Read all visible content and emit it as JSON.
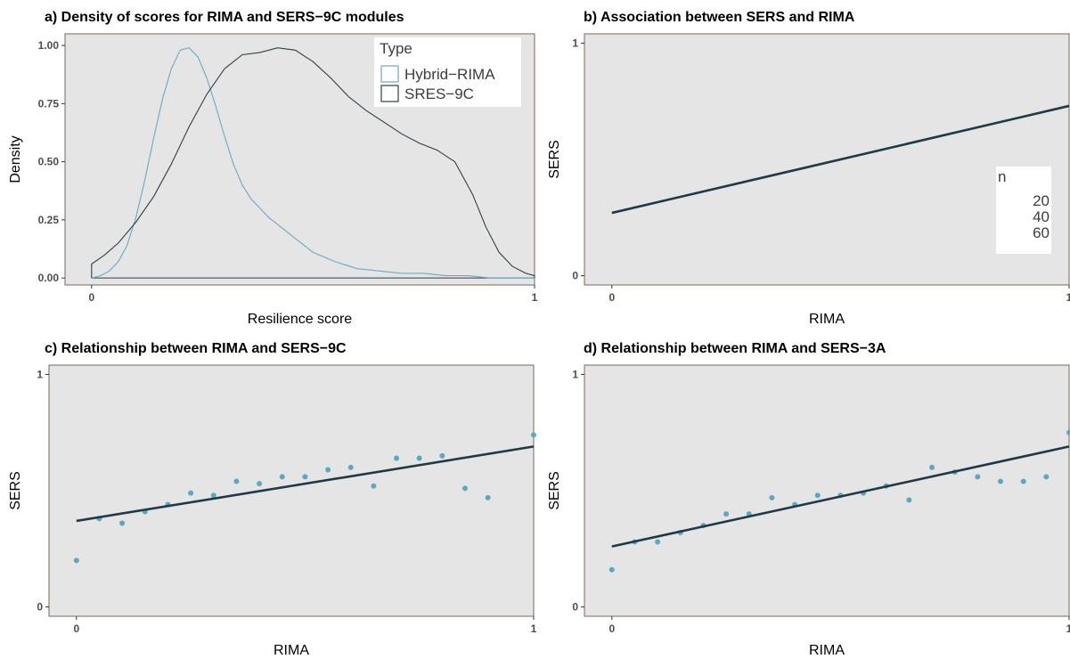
{
  "colors": {
    "panel_background": "#e5e5e5",
    "panel_border": "#7a6a5a",
    "hybrid_rima": "#6aaac2",
    "sres_9c": "#2f3f47",
    "fit_line": "#1f3a46",
    "points": "#5ea7c2"
  },
  "chart_data": [
    {
      "id": "a",
      "type": "line",
      "title": "a) Density of scores for RIMA and SERS−9C modules",
      "xlabel": "Resilience score",
      "ylabel": "Density",
      "xlim": [
        -0.06,
        1.0
      ],
      "ylim": [
        -0.03,
        1.05
      ],
      "xticks": [
        0,
        1
      ],
      "xtick_labels": [
        "0",
        "1"
      ],
      "yticks": [
        0,
        0.25,
        0.5,
        0.75,
        1.0
      ],
      "ytick_labels": [
        "0.00",
        "0.25",
        "0.50",
        "0.75",
        "1.00"
      ],
      "legend": {
        "title": "Type",
        "entries": [
          "Hybrid−RIMA",
          "SRES−9C"
        ],
        "position": "top-right"
      },
      "series": [
        {
          "name": "Hybrid−RIMA",
          "color_key": "hybrid_rima",
          "x": [
            0,
            0.02,
            0.04,
            0.06,
            0.08,
            0.1,
            0.12,
            0.14,
            0.16,
            0.18,
            0.2,
            0.22,
            0.24,
            0.26,
            0.28,
            0.3,
            0.32,
            0.34,
            0.36,
            0.38,
            0.4,
            0.42,
            0.44,
            0.46,
            0.48,
            0.5,
            0.55,
            0.6,
            0.65,
            0.7,
            0.75,
            0.8,
            0.85,
            0.9,
            0.95,
            1.0
          ],
          "y": [
            0.0,
            0.01,
            0.03,
            0.07,
            0.14,
            0.26,
            0.42,
            0.6,
            0.77,
            0.9,
            0.98,
            0.99,
            0.95,
            0.86,
            0.74,
            0.61,
            0.49,
            0.4,
            0.34,
            0.3,
            0.26,
            0.23,
            0.2,
            0.17,
            0.14,
            0.11,
            0.07,
            0.04,
            0.03,
            0.02,
            0.02,
            0.01,
            0.01,
            0.0,
            0.0,
            0.0
          ]
        },
        {
          "name": "SRES−9C",
          "color_key": "sres_9c",
          "x": [
            0,
            0.03,
            0.06,
            0.1,
            0.14,
            0.18,
            0.22,
            0.26,
            0.3,
            0.34,
            0.38,
            0.42,
            0.46,
            0.5,
            0.54,
            0.58,
            0.62,
            0.66,
            0.7,
            0.74,
            0.78,
            0.82,
            0.86,
            0.89,
            0.92,
            0.95,
            0.98,
            1.0
          ],
          "y": [
            0.06,
            0.1,
            0.15,
            0.24,
            0.35,
            0.49,
            0.65,
            0.79,
            0.9,
            0.96,
            0.97,
            0.99,
            0.98,
            0.93,
            0.86,
            0.78,
            0.72,
            0.67,
            0.62,
            0.58,
            0.55,
            0.5,
            0.36,
            0.22,
            0.11,
            0.05,
            0.02,
            0.01
          ]
        }
      ]
    },
    {
      "id": "b",
      "type": "line",
      "title": "b) Association between SERS and RIMA",
      "xlabel": "RIMA",
      "ylabel": "SERS",
      "xlim": [
        -0.06,
        1.0
      ],
      "ylim": [
        -0.04,
        1.04
      ],
      "xticks": [
        0,
        1
      ],
      "xtick_labels": [
        "0",
        "1"
      ],
      "yticks": [
        0,
        1
      ],
      "ytick_labels": [
        "0",
        "1"
      ],
      "legend": {
        "title": "n",
        "entries": [
          "20",
          "40",
          "60"
        ],
        "position": "right"
      },
      "fit_line": {
        "x": [
          0,
          1
        ],
        "y": [
          0.27,
          0.73
        ]
      }
    },
    {
      "id": "c",
      "type": "scatter",
      "title": "c) Relationship between RIMA and SERS−9C",
      "xlabel": "RIMA",
      "ylabel": "SERS",
      "xlim": [
        -0.06,
        1.0
      ],
      "ylim": [
        -0.04,
        1.04
      ],
      "xticks": [
        0,
        1
      ],
      "xtick_labels": [
        "0",
        "1"
      ],
      "yticks": [
        0,
        1
      ],
      "ytick_labels": [
        "0",
        "1"
      ],
      "points": {
        "x": [
          0,
          0.05,
          0.1,
          0.15,
          0.2,
          0.25,
          0.3,
          0.35,
          0.4,
          0.45,
          0.5,
          0.55,
          0.6,
          0.65,
          0.7,
          0.75,
          0.8,
          0.85,
          0.9,
          1.0
        ],
        "y": [
          0.2,
          0.38,
          0.36,
          0.41,
          0.44,
          0.49,
          0.48,
          0.54,
          0.53,
          0.56,
          0.56,
          0.59,
          0.6,
          0.52,
          0.64,
          0.64,
          0.65,
          0.51,
          0.47,
          0.74
        ]
      },
      "fit_line": {
        "x": [
          0,
          1
        ],
        "y": [
          0.37,
          0.69
        ]
      }
    },
    {
      "id": "d",
      "type": "scatter",
      "title": "d) Relationship between RIMA and SERS−3A",
      "xlabel": "RIMA",
      "ylabel": "SERS",
      "xlim": [
        -0.06,
        1.0
      ],
      "ylim": [
        -0.04,
        1.04
      ],
      "xticks": [
        0,
        1
      ],
      "xtick_labels": [
        "0",
        "1"
      ],
      "yticks": [
        0,
        1
      ],
      "ytick_labels": [
        "0",
        "1"
      ],
      "points": {
        "x": [
          0,
          0.05,
          0.1,
          0.15,
          0.2,
          0.25,
          0.3,
          0.35,
          0.4,
          0.45,
          0.5,
          0.55,
          0.6,
          0.65,
          0.7,
          0.75,
          0.8,
          0.85,
          0.9,
          0.95,
          1.0
        ],
        "y": [
          0.16,
          0.28,
          0.28,
          0.32,
          0.35,
          0.4,
          0.4,
          0.47,
          0.44,
          0.48,
          0.48,
          0.49,
          0.52,
          0.46,
          0.6,
          0.58,
          0.56,
          0.54,
          0.54,
          0.56,
          0.75
        ]
      },
      "fit_line": {
        "x": [
          0,
          1
        ],
        "y": [
          0.26,
          0.69
        ]
      }
    }
  ]
}
